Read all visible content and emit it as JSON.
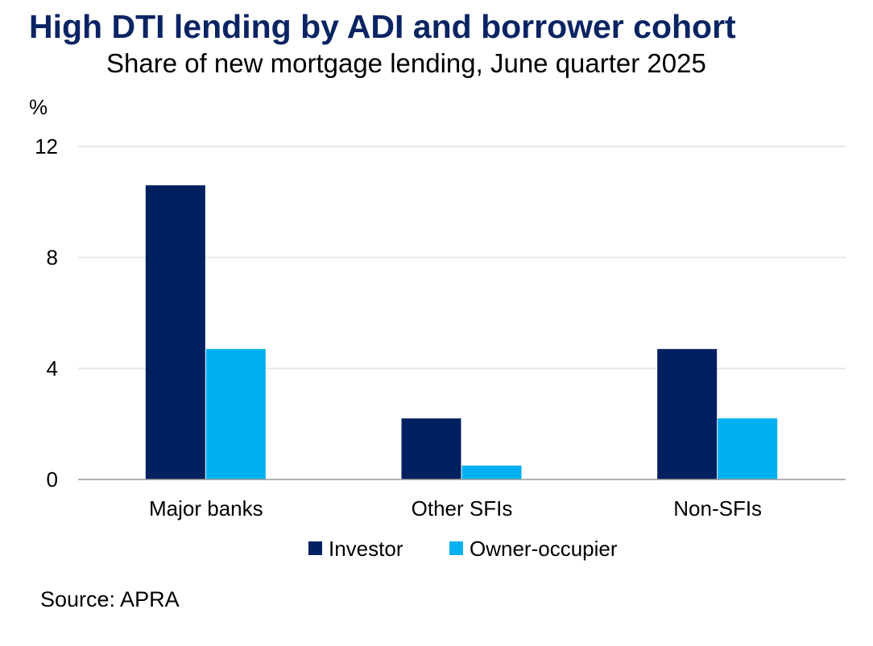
{
  "title": "High DTI lending by ADI and borrower cohort",
  "subtitle": "Share of new mortgage lending, June quarter 2025",
  "source": "Source: APRA",
  "chart_data": {
    "type": "bar",
    "title": "High DTI lending by ADI and borrower cohort",
    "subtitle": "Share of new mortgage lending, June quarter 2025",
    "ylabel": "%",
    "xlabel": "",
    "ylim": [
      0,
      12
    ],
    "yticks": [
      0,
      4,
      8,
      12
    ],
    "grid": true,
    "legend_position": "bottom",
    "categories": [
      "Major banks",
      "Other SFIs",
      "Non-SFIs"
    ],
    "series": [
      {
        "name": "Investor",
        "color": "#002060",
        "values": [
          10.6,
          2.2,
          4.7
        ]
      },
      {
        "name": "Owner-occupier",
        "color": "#00b0f0",
        "values": [
          4.7,
          0.5,
          2.2
        ]
      }
    ]
  }
}
